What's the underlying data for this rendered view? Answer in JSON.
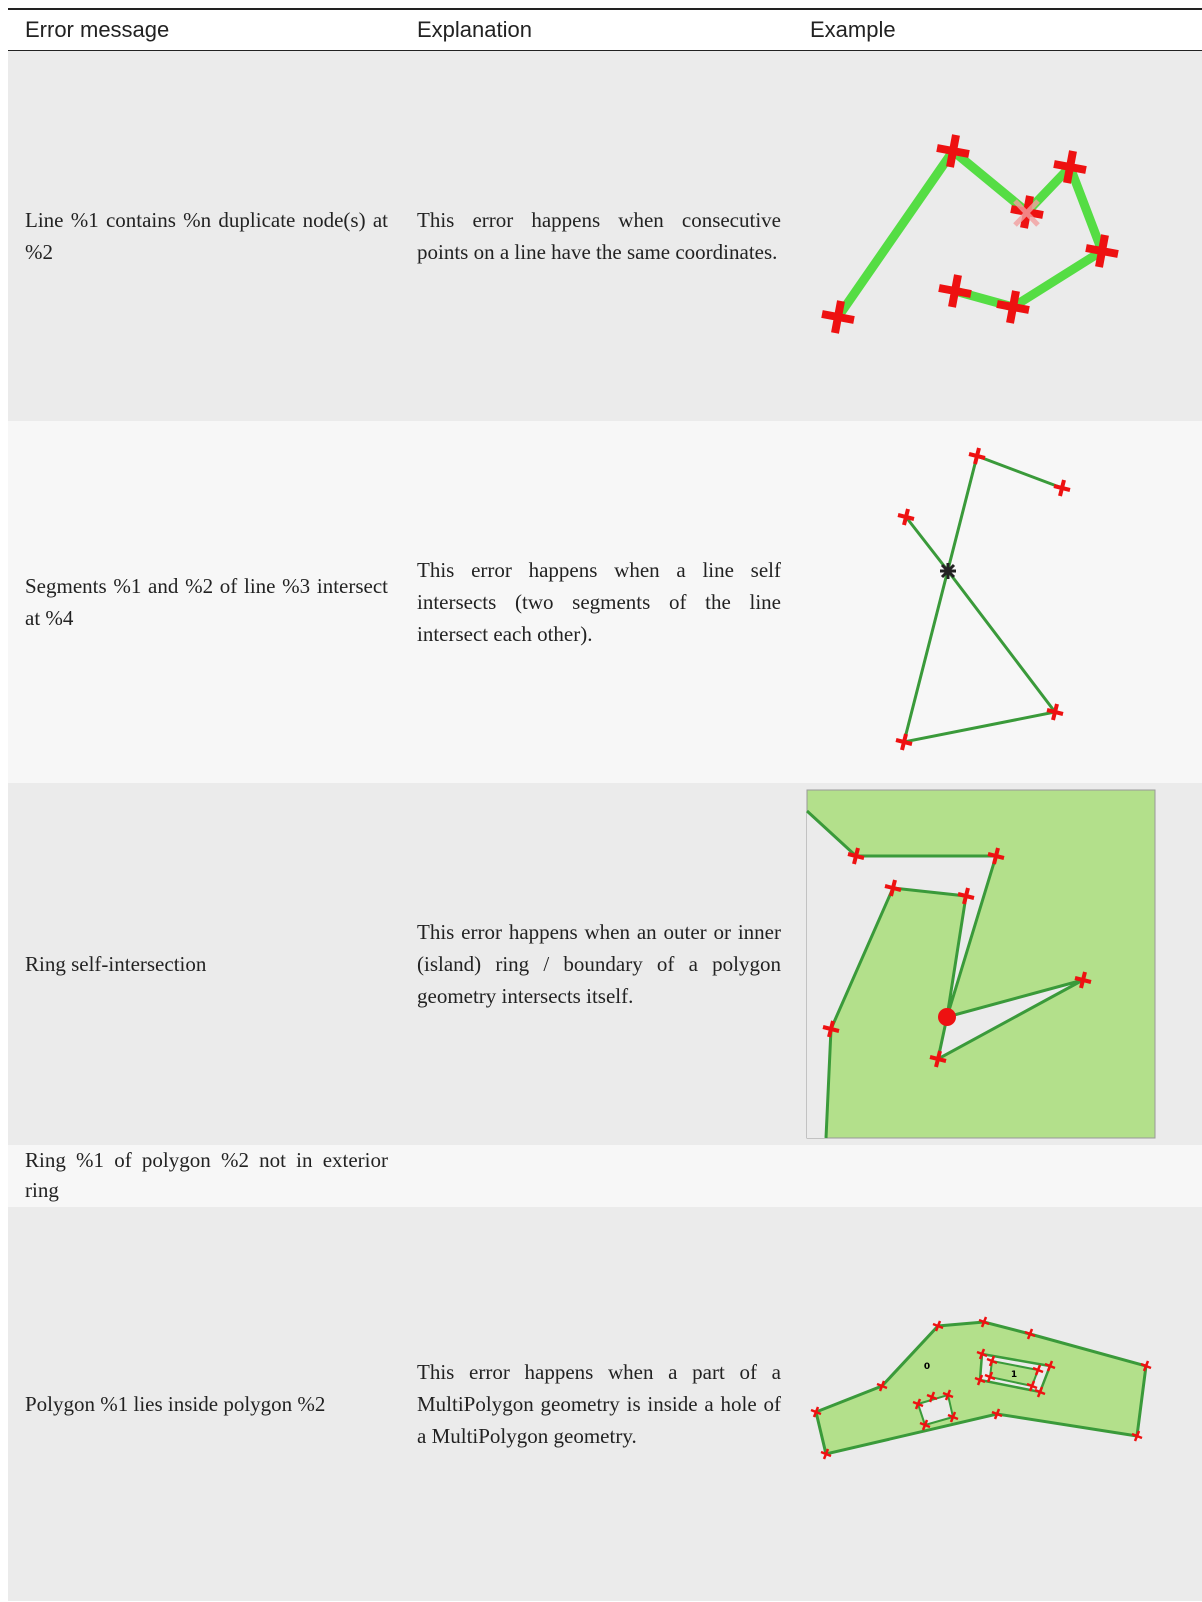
{
  "table": {
    "header": [
      "Error message",
      "Explanation",
      "Example"
    ],
    "rows": [
      {
        "message": "Line %1 contains %n duplicate node(s) at %2",
        "explanation": "This error happens when consecutive points on a line have the same coordinates."
      },
      {
        "message": "Segments %1 and %2 of line %3 intersect at %4",
        "explanation": "This error happens when a line self intersects (two segments of the line intersect each other)."
      },
      {
        "message": "Ring self-intersection",
        "explanation": "This error happens when an outer or inner (island) ring / boundary of a polygon geometry intersects itself."
      },
      {
        "message": "Ring %1 of polygon %2 not in exterior ring",
        "explanation": ""
      },
      {
        "message": "Polygon %1 lies inside polygon %2",
        "explanation": "This error happens when a part of a MultiPolygon geometry is inside a hole of a MultiPolygon geometry.",
        "example_labels": [
          "0",
          "1"
        ]
      }
    ]
  }
}
